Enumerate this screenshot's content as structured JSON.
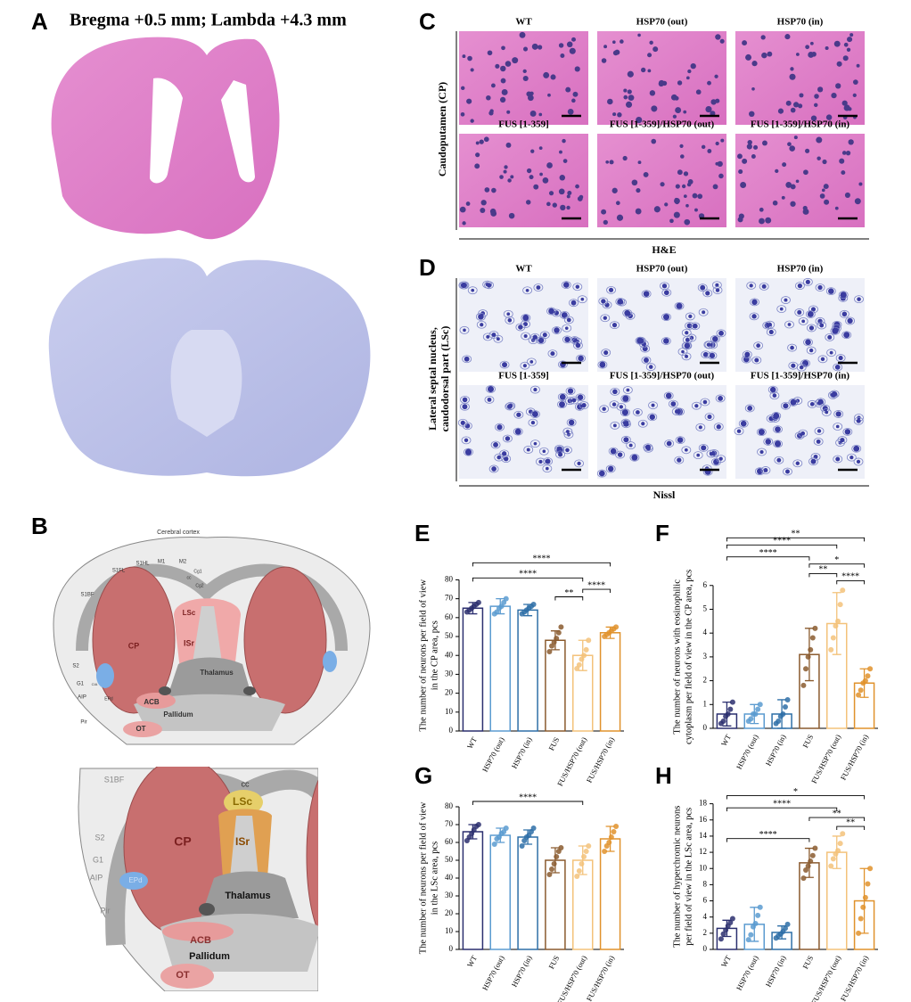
{
  "figure": {
    "panel_letters": [
      "A",
      "B",
      "C",
      "D"
    ],
    "a_title": "Bregma +0.5 mm; Lambda +4.3 mm",
    "c": {
      "row_label": "Caudoputamen (CP)",
      "columns": [
        "WT",
        "HSP70 (out)",
        "HSP70 (in)",
        "FUS [1-359]",
        "FUS [1-359]/HSP70 (out)",
        "FUS [1-359]/HSP70 (in)"
      ],
      "stain": "H&E"
    },
    "d": {
      "row_label": [
        "Lateral septal nucleus,",
        "caudodorsal part (LSc)"
      ],
      "columns": [
        "WT",
        "HSP70 (out)",
        "HSP70 (in)",
        "FUS [1-359]",
        "FUS [1-359]/HSP70 (out)",
        "FUS [1-359]/HSP70 (in)"
      ],
      "stain": "Nissl"
    },
    "b_top_labels": [
      "Cerebral cortex",
      "S1FL",
      "S1HL",
      "M1",
      "M2",
      "Cg1",
      "Cg2",
      "cc",
      "S1BF",
      "S2",
      "G1",
      "AIP",
      "Pir",
      "CP",
      "LSc",
      "ISr",
      "Thalamus",
      "ACB",
      "Pallidum",
      "OT",
      "EPd",
      "CIA"
    ],
    "b_bottom_labels": [
      "S1BF",
      "S2",
      "G1",
      "AIP",
      "Pir",
      "EPd",
      "cc",
      "CP",
      "LSc",
      "ISr",
      "Thalamus",
      "ACB",
      "Pallidum",
      "OT"
    ]
  },
  "chart_data": [
    {
      "type": "bar",
      "panel": "E",
      "ylabel": [
        "The number of neurons per field of view",
        "in the CP area, pcs"
      ],
      "categories": [
        "WT",
        "HSP70 (out)",
        "HSP70 (in)",
        "FUS",
        "FUS/HSP70 (out)",
        "FUS/HSP70 (in)"
      ],
      "colors": [
        "#2b2f6f",
        "#5b9bd0",
        "#2e6fa7",
        "#8a5a2e",
        "#f3c27a",
        "#e0922c"
      ],
      "values": [
        65,
        66,
        64,
        48,
        40,
        52
      ],
      "errors": [
        3,
        4,
        3,
        5,
        8,
        3
      ],
      "points": [
        [
          63,
          64,
          65,
          66,
          67,
          68
        ],
        [
          62,
          63,
          65,
          66,
          68,
          70
        ],
        [
          62,
          63,
          64,
          65,
          66,
          67
        ],
        [
          42,
          45,
          47,
          49,
          52,
          55
        ],
        [
          33,
          35,
          38,
          40,
          43,
          48
        ],
        [
          50,
          51,
          52,
          53,
          54,
          55
        ]
      ],
      "ylim": [
        0,
        92
      ],
      "yticks": [
        0,
        10,
        20,
        30,
        40,
        50,
        60,
        70,
        80
      ],
      "significance": [
        {
          "from": "WT",
          "to": "FUS/HSP70 (in)",
          "label": "****",
          "y": 89
        },
        {
          "from": "WT",
          "to": "FUS/HSP70 (out)",
          "label": "****",
          "y": 81
        },
        {
          "from": "FUS/HSP70 (out)",
          "to": "FUS/HSP70 (in)",
          "label": "****",
          "y": 75
        },
        {
          "from": "FUS",
          "to": "FUS/HSP70 (out)",
          "label": "**",
          "y": 71
        }
      ]
    },
    {
      "type": "bar",
      "panel": "F",
      "ylabel": [
        "The number of neurons with eosinophilic",
        "cytoplasm per field of view in the CP area, pcs"
      ],
      "categories": [
        "WT",
        "HSP70 (out)",
        "HSP70 (in)",
        "FUS",
        "FUS/HSP70 (out)",
        "FUS/HSP70 (in)"
      ],
      "colors": [
        "#2b2f6f",
        "#5b9bd0",
        "#2e6fa7",
        "#8a5a2e",
        "#f3c27a",
        "#e0922c"
      ],
      "values": [
        0.6,
        0.6,
        0.6,
        3.1,
        4.4,
        1.9
      ],
      "errors": [
        0.5,
        0.4,
        0.6,
        1.1,
        1.3,
        0.6
      ],
      "points": [
        [
          0.2,
          0.3,
          0.5,
          0.6,
          0.8,
          1.1
        ],
        [
          0.3,
          0.4,
          0.6,
          0.6,
          0.8,
          1.0
        ],
        [
          0.2,
          0.3,
          0.5,
          0.6,
          0.9,
          1.2
        ],
        [
          1.8,
          2.5,
          3.0,
          3.3,
          3.8,
          4.2
        ],
        [
          3.3,
          3.8,
          4.3,
          4.5,
          5.2,
          5.8
        ],
        [
          1.4,
          1.6,
          1.9,
          2.0,
          2.2,
          2.5
        ]
      ],
      "ylim": [
        0,
        8.2
      ],
      "yticks": [
        0,
        1,
        2,
        3,
        4,
        5,
        6
      ],
      "significance": [
        {
          "from": "WT",
          "to": "FUS/HSP70 (in)",
          "label": "**",
          "y": 8.0
        },
        {
          "from": "WT",
          "to": "FUS/HSP70 (out)",
          "label": "****",
          "y": 7.7
        },
        {
          "from": "WT",
          "to": "FUS",
          "label": "****",
          "y": 7.2
        },
        {
          "from": "FUS",
          "to": "FUS/HSP70 (in)",
          "label": "*",
          "y": 6.9
        },
        {
          "from": "FUS",
          "to": "FUS/HSP70 (out)",
          "label": "**",
          "y": 6.5
        },
        {
          "from": "FUS/HSP70 (out)",
          "to": "FUS/HSP70 (in)",
          "label": "****",
          "y": 6.2
        }
      ]
    },
    {
      "type": "bar",
      "panel": "G",
      "ylabel": [
        "The number of neurons per field of view",
        "in the LSc area, pcs"
      ],
      "categories": [
        "WT",
        "HSP70 (out)",
        "HSP70 (in)",
        "FUS",
        "FUS/HSP70 (out)",
        "FUS/HSP70 (in)"
      ],
      "colors": [
        "#2b2f6f",
        "#5b9bd0",
        "#2e6fa7",
        "#8a5a2e",
        "#f3c27a",
        "#e0922c"
      ],
      "values": [
        66,
        64,
        63,
        50,
        50,
        62
      ],
      "errors": [
        4,
        4,
        4,
        7,
        8,
        7
      ],
      "points": [
        [
          61,
          63,
          65,
          67,
          69,
          70
        ],
        [
          59,
          62,
          63,
          65,
          66,
          68
        ],
        [
          58,
          61,
          63,
          64,
          66,
          68
        ],
        [
          42,
          45,
          48,
          52,
          55,
          57
        ],
        [
          41,
          44,
          48,
          52,
          55,
          58
        ],
        [
          55,
          58,
          60,
          63,
          66,
          69
        ]
      ],
      "ylim": [
        0,
        88
      ],
      "yticks": [
        0,
        10,
        20,
        30,
        40,
        50,
        60,
        70,
        80
      ],
      "significance": [
        {
          "from": "WT",
          "to": "FUS/HSP70 (out)",
          "label": "****",
          "y": 83
        }
      ]
    },
    {
      "type": "bar",
      "panel": "H",
      "ylabel": [
        "The number of hyperchromic neurons",
        "per field of view in the LSc area, pcs"
      ],
      "categories": [
        "WT",
        "HSP70 (out)",
        "HSP70 (in)",
        "FUS",
        "FUS/HSP70 (out)",
        "FUS/HSP70 (in)"
      ],
      "colors": [
        "#2b2f6f",
        "#5b9bd0",
        "#2e6fa7",
        "#8a5a2e",
        "#f3c27a",
        "#e0922c"
      ],
      "values": [
        2.6,
        3.1,
        2.1,
        10.7,
        12.0,
        6.0
      ],
      "errors": [
        1.0,
        2.1,
        0.8,
        1.8,
        2.0,
        4.0
      ],
      "points": [
        [
          1.3,
          1.9,
          2.4,
          2.9,
          3.3,
          3.8
        ],
        [
          1.2,
          1.8,
          2.8,
          3.2,
          4.2,
          5.2
        ],
        [
          1.4,
          1.7,
          1.9,
          2.2,
          2.6,
          3.1
        ],
        [
          8.8,
          9.8,
          10.3,
          10.9,
          11.6,
          12.5
        ],
        [
          10.3,
          11.2,
          11.8,
          12.2,
          13.1,
          14.3
        ],
        [
          2.0,
          3.8,
          5.2,
          6.4,
          8.1,
          10.0
        ]
      ],
      "ylim": [
        0,
        19.5
      ],
      "yticks": [
        0,
        2,
        4,
        6,
        8,
        10,
        12,
        14,
        16,
        18
      ],
      "significance": [
        {
          "from": "WT",
          "to": "FUS/HSP70 (in)",
          "label": "*",
          "y": 19
        },
        {
          "from": "WT",
          "to": "FUS/HSP70 (out)",
          "label": "****",
          "y": 17.5
        },
        {
          "from": "FUS",
          "to": "FUS/HSP70 (in)",
          "label": "**",
          "y": 16.3
        },
        {
          "from": "FUS/HSP70 (out)",
          "to": "FUS/HSP70 (in)",
          "label": "**",
          "y": 15.2
        },
        {
          "from": "WT",
          "to": "FUS",
          "label": "****",
          "y": 13.7
        }
      ]
    }
  ]
}
